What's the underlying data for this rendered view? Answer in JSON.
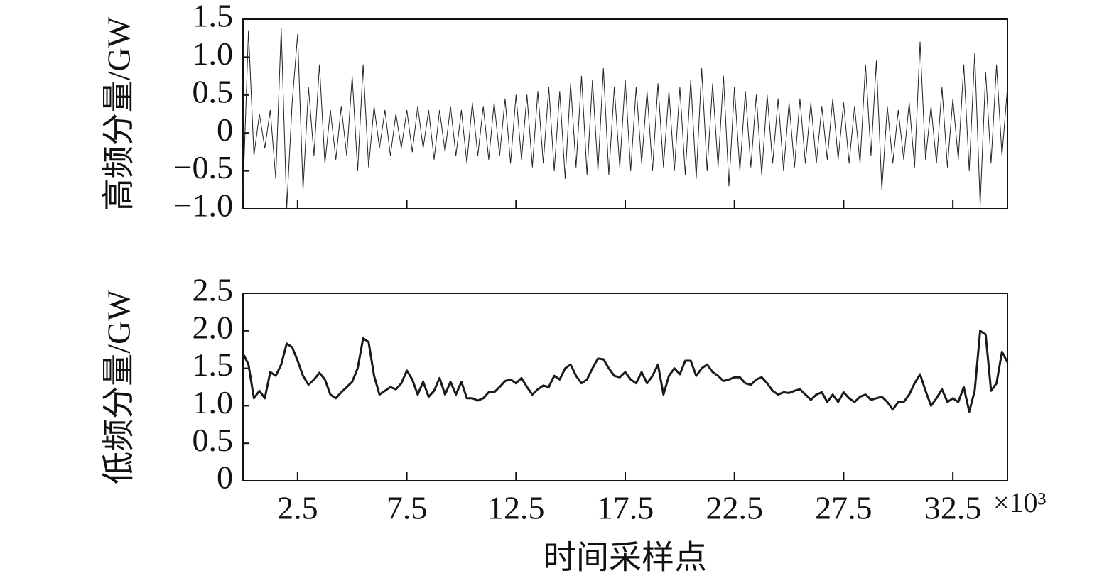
{
  "chart_data": [
    {
      "type": "line",
      "ylabel": "高频分量/GW",
      "color": "#222222",
      "xlim": [
        0,
        35
      ],
      "xticks": [
        2.5,
        7.5,
        12.5,
        17.5,
        22.5,
        27.5,
        32.5
      ],
      "show_xtick_labels": false,
      "ylim": [
        -1,
        1.5
      ],
      "yticks": [
        1.5,
        {
          "value": 1,
          "label": "1.0"
        },
        0.5,
        0,
        {
          "value": -0.5,
          "label": "−0.5"
        },
        {
          "value": -1,
          "label": "−1.0"
        }
      ],
      "x": [
        0,
        0.25,
        0.5,
        0.75,
        1,
        1.25,
        1.5,
        1.75,
        2,
        2.25,
        2.5,
        2.75,
        3,
        3.25,
        3.5,
        3.75,
        4,
        4.25,
        4.5,
        4.75,
        5,
        5.25,
        5.5,
        5.75,
        6,
        6.25,
        6.5,
        6.75,
        7,
        7.25,
        7.5,
        7.75,
        8,
        8.25,
        8.5,
        8.75,
        9,
        9.25,
        9.5,
        9.75,
        10,
        10.25,
        10.5,
        10.75,
        11,
        11.25,
        11.5,
        11.75,
        12,
        12.25,
        12.5,
        12.75,
        13,
        13.25,
        13.5,
        13.75,
        14,
        14.25,
        14.5,
        14.75,
        15,
        15.25,
        15.5,
        15.75,
        16,
        16.25,
        16.5,
        16.75,
        17,
        17.25,
        17.5,
        17.75,
        18,
        18.25,
        18.5,
        18.75,
        19,
        19.25,
        19.5,
        19.75,
        20,
        20.25,
        20.5,
        20.75,
        21,
        21.25,
        21.5,
        21.75,
        22,
        22.25,
        22.5,
        22.75,
        23,
        23.25,
        23.5,
        23.75,
        24,
        24.25,
        24.5,
        24.75,
        25,
        25.25,
        25.5,
        25.75,
        26,
        26.25,
        26.5,
        26.75,
        27,
        27.25,
        27.5,
        27.75,
        28,
        28.25,
        28.5,
        28.75,
        29,
        29.25,
        29.5,
        29.75,
        30,
        30.25,
        30.5,
        30.75,
        31,
        31.25,
        31.5,
        31.75,
        32,
        32.25,
        32.5,
        32.75,
        33,
        33.25,
        33.5,
        33.75,
        34,
        34.25,
        34.5,
        34.75,
        35
      ],
      "values": [
        -0.8,
        1.35,
        -0.3,
        0.25,
        -0.2,
        0.3,
        -0.6,
        1.38,
        -1.0,
        0.4,
        1.3,
        -0.75,
        0.6,
        -0.3,
        0.9,
        -0.4,
        0.3,
        -0.35,
        0.35,
        -0.3,
        0.75,
        -0.5,
        0.9,
        -0.45,
        0.35,
        -0.2,
        0.3,
        -0.3,
        0.25,
        -0.2,
        0.3,
        -0.25,
        0.35,
        -0.2,
        0.3,
        -0.35,
        0.3,
        -0.25,
        0.35,
        -0.3,
        0.3,
        -0.4,
        0.4,
        -0.3,
        0.35,
        -0.35,
        0.4,
        -0.3,
        0.45,
        -0.4,
        0.5,
        -0.35,
        0.5,
        -0.45,
        0.55,
        -0.4,
        0.6,
        -0.5,
        0.55,
        -0.6,
        0.65,
        -0.45,
        0.75,
        -0.55,
        0.7,
        -0.5,
        0.85,
        -0.55,
        0.6,
        -0.45,
        0.7,
        -0.5,
        0.6,
        -0.4,
        0.55,
        -0.5,
        0.65,
        -0.45,
        0.55,
        -0.5,
        0.6,
        -0.55,
        0.7,
        -0.6,
        0.85,
        -0.5,
        0.65,
        -0.45,
        0.75,
        -0.7,
        0.6,
        -0.5,
        0.55,
        -0.45,
        0.5,
        -0.55,
        0.5,
        -0.4,
        0.45,
        -0.5,
        0.4,
        -0.45,
        0.45,
        -0.4,
        0.4,
        -0.4,
        0.35,
        -0.35,
        0.45,
        -0.35,
        0.4,
        -0.4,
        0.35,
        -0.4,
        0.9,
        -0.3,
        0.95,
        -0.75,
        0.35,
        -0.4,
        0.3,
        -0.35,
        0.4,
        -0.45,
        1.2,
        -0.35,
        0.35,
        -0.4,
        0.6,
        -0.45,
        0.45,
        -0.35,
        0.9,
        -0.5,
        1.05,
        -0.95,
        0.8,
        -0.4,
        0.9,
        -0.3,
        0.6
      ]
    },
    {
      "type": "line",
      "ylabel": "低频分量/GW",
      "xlabel": "时间采样点",
      "x_multiplier": "×10³",
      "color": "#1a1a1a",
      "xlim": [
        0,
        35
      ],
      "xticks": [
        2.5,
        7.5,
        12.5,
        17.5,
        22.5,
        27.5,
        32.5
      ],
      "show_xtick_labels": true,
      "ylim": [
        0,
        2.5
      ],
      "yticks": [
        2.5,
        {
          "value": 2,
          "label": "2.0"
        },
        1.5,
        {
          "value": 1,
          "label": "1.0"
        },
        0.5,
        0
      ],
      "x": [
        0,
        0.25,
        0.5,
        0.75,
        1,
        1.25,
        1.5,
        1.75,
        2,
        2.25,
        2.5,
        2.75,
        3,
        3.25,
        3.5,
        3.75,
        4,
        4.25,
        4.5,
        4.75,
        5,
        5.25,
        5.5,
        5.75,
        6,
        6.25,
        6.5,
        6.75,
        7,
        7.25,
        7.5,
        7.75,
        8,
        8.25,
        8.5,
        8.75,
        9,
        9.25,
        9.5,
        9.75,
        10,
        10.25,
        10.5,
        10.75,
        11,
        11.25,
        11.5,
        11.75,
        12,
        12.25,
        12.5,
        12.75,
        13,
        13.25,
        13.5,
        13.75,
        14,
        14.25,
        14.5,
        14.75,
        15,
        15.25,
        15.5,
        15.75,
        16,
        16.25,
        16.5,
        16.75,
        17,
        17.25,
        17.5,
        17.75,
        18,
        18.25,
        18.5,
        18.75,
        19,
        19.25,
        19.5,
        19.75,
        20,
        20.25,
        20.5,
        20.75,
        21,
        21.25,
        21.5,
        21.75,
        22,
        22.25,
        22.5,
        22.75,
        23,
        23.25,
        23.5,
        23.75,
        24,
        24.25,
        24.5,
        24.75,
        25,
        25.25,
        25.5,
        25.75,
        26,
        26.25,
        26.5,
        26.75,
        27,
        27.25,
        27.5,
        27.75,
        28,
        28.25,
        28.5,
        28.75,
        29,
        29.25,
        29.5,
        29.75,
        30,
        30.25,
        30.5,
        30.75,
        31,
        31.25,
        31.5,
        31.75,
        32,
        32.25,
        32.5,
        32.75,
        33,
        33.25,
        33.5,
        33.75,
        34,
        34.25,
        34.5,
        34.75,
        35
      ],
      "values": [
        1.7,
        1.55,
        1.1,
        1.2,
        1.1,
        1.45,
        1.4,
        1.55,
        1.83,
        1.78,
        1.6,
        1.4,
        1.28,
        1.35,
        1.44,
        1.35,
        1.15,
        1.1,
        1.18,
        1.25,
        1.32,
        1.5,
        1.9,
        1.85,
        1.4,
        1.15,
        1.2,
        1.25,
        1.22,
        1.3,
        1.47,
        1.35,
        1.15,
        1.32,
        1.12,
        1.2,
        1.37,
        1.15,
        1.32,
        1.15,
        1.32,
        1.1,
        1.1,
        1.07,
        1.1,
        1.18,
        1.18,
        1.25,
        1.33,
        1.35,
        1.3,
        1.37,
        1.25,
        1.15,
        1.22,
        1.27,
        1.25,
        1.4,
        1.35,
        1.5,
        1.55,
        1.4,
        1.3,
        1.35,
        1.5,
        1.63,
        1.62,
        1.5,
        1.4,
        1.38,
        1.45,
        1.35,
        1.3,
        1.45,
        1.3,
        1.4,
        1.55,
        1.15,
        1.4,
        1.5,
        1.42,
        1.6,
        1.6,
        1.4,
        1.5,
        1.55,
        1.45,
        1.4,
        1.33,
        1.35,
        1.38,
        1.38,
        1.3,
        1.28,
        1.35,
        1.38,
        1.3,
        1.2,
        1.15,
        1.18,
        1.17,
        1.2,
        1.22,
        1.15,
        1.08,
        1.15,
        1.18,
        1.05,
        1.15,
        1.05,
        1.18,
        1.1,
        1.05,
        1.12,
        1.15,
        1.08,
        1.1,
        1.12,
        1.05,
        0.95,
        1.05,
        1.05,
        1.15,
        1.3,
        1.42,
        1.2,
        1.0,
        1.1,
        1.22,
        1.05,
        1.1,
        1.05,
        1.25,
        0.92,
        1.2,
        2.0,
        1.95,
        1.2,
        1.3,
        1.72,
        1.58
      ]
    }
  ]
}
